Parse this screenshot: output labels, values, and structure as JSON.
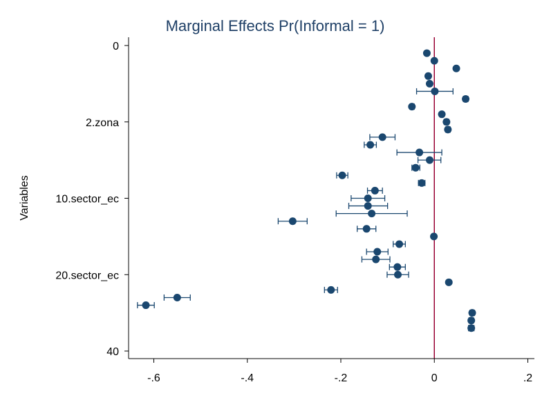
{
  "chart_data": {
    "type": "scatter",
    "title": "Marginal Effects Pr(Informal = 1)",
    "xlabel": "",
    "ylabel": "Variables",
    "xlim": [
      -0.65,
      0.2
    ],
    "ylim": [
      0,
      40
    ],
    "y_reversed": true,
    "grid": false,
    "x_ticks": [
      {
        "value": -0.6,
        "label": "-.6"
      },
      {
        "value": -0.4,
        "label": "-.4"
      },
      {
        "value": -0.2,
        "label": "-.2"
      },
      {
        "value": 0,
        "label": "0"
      },
      {
        "value": 0.2,
        "label": ".2"
      }
    ],
    "y_ticks": [
      {
        "value": 0,
        "label": "0"
      },
      {
        "value": 10,
        "label": "2.zona"
      },
      {
        "value": 20,
        "label": "10.sector_ec"
      },
      {
        "value": 30,
        "label": "20.sector_ec"
      },
      {
        "value": 40,
        "label": "40"
      }
    ],
    "reference_line": {
      "x": 0,
      "color": "#990033"
    },
    "marker_color": "#1a476f",
    "series": [
      {
        "points": [
          {
            "y": 1,
            "x": -0.016,
            "lo": null,
            "hi": null
          },
          {
            "y": 2,
            "x": 0.0,
            "lo": null,
            "hi": null
          },
          {
            "y": 3,
            "x": 0.047,
            "lo": null,
            "hi": null
          },
          {
            "y": 4,
            "x": -0.013,
            "lo": null,
            "hi": null
          },
          {
            "y": 5,
            "x": -0.01,
            "lo": null,
            "hi": null
          },
          {
            "y": 6,
            "x": 0.001,
            "lo": -0.038,
            "hi": 0.04
          },
          {
            "y": 7,
            "x": 0.067,
            "lo": 0.062,
            "hi": 0.072
          },
          {
            "y": 8,
            "x": -0.048,
            "lo": -0.052,
            "hi": -0.043
          },
          {
            "y": 9,
            "x": 0.016,
            "lo": 0.012,
            "hi": 0.02
          },
          {
            "y": 10,
            "x": 0.026,
            "lo": 0.021,
            "hi": 0.031
          },
          {
            "y": 11,
            "x": 0.029,
            "lo": 0.024,
            "hi": 0.034
          },
          {
            "y": 12,
            "x": -0.111,
            "lo": -0.138,
            "hi": -0.084
          },
          {
            "y": 13,
            "x": -0.137,
            "lo": -0.15,
            "hi": -0.124
          },
          {
            "y": 14,
            "x": -0.032,
            "lo": -0.08,
            "hi": 0.016
          },
          {
            "y": 15,
            "x": -0.01,
            "lo": -0.035,
            "hi": 0.014
          },
          {
            "y": 16,
            "x": -0.04,
            "lo": -0.048,
            "hi": -0.031
          },
          {
            "y": 17,
            "x": -0.197,
            "lo": -0.209,
            "hi": -0.185
          },
          {
            "y": 18,
            "x": -0.027,
            "lo": -0.034,
            "hi": -0.02
          },
          {
            "y": 19,
            "x": -0.127,
            "lo": -0.143,
            "hi": -0.111
          },
          {
            "y": 20,
            "x": -0.142,
            "lo": -0.178,
            "hi": -0.106
          },
          {
            "y": 21,
            "x": -0.142,
            "lo": -0.183,
            "hi": -0.1
          },
          {
            "y": 22,
            "x": -0.134,
            "lo": -0.21,
            "hi": -0.058
          },
          {
            "y": 23,
            "x": -0.303,
            "lo": -0.334,
            "hi": -0.272
          },
          {
            "y": 24,
            "x": -0.145,
            "lo": -0.165,
            "hi": -0.125
          },
          {
            "y": 25,
            "x": -0.001,
            "lo": -0.005,
            "hi": 0.003
          },
          {
            "y": 26,
            "x": -0.075,
            "lo": -0.088,
            "hi": -0.062
          },
          {
            "y": 27,
            "x": -0.122,
            "lo": -0.145,
            "hi": -0.099
          },
          {
            "y": 28,
            "x": -0.125,
            "lo": -0.155,
            "hi": -0.095
          },
          {
            "y": 29,
            "x": -0.079,
            "lo": -0.096,
            "hi": -0.062
          },
          {
            "y": 30,
            "x": -0.078,
            "lo": -0.101,
            "hi": -0.055
          },
          {
            "y": 31,
            "x": 0.031,
            "lo": 0.027,
            "hi": 0.035
          },
          {
            "y": 32,
            "x": -0.221,
            "lo": -0.235,
            "hi": -0.207
          },
          {
            "y": 33,
            "x": -0.55,
            "lo": -0.578,
            "hi": -0.522
          },
          {
            "y": 34,
            "x": -0.617,
            "lo": -0.635,
            "hi": -0.599
          },
          {
            "y": 35,
            "x": 0.081,
            "lo": 0.076,
            "hi": 0.086
          },
          {
            "y": 36,
            "x": 0.079,
            "lo": 0.074,
            "hi": 0.084
          },
          {
            "y": 37,
            "x": 0.079,
            "lo": 0.073,
            "hi": 0.085
          }
        ]
      }
    ]
  }
}
